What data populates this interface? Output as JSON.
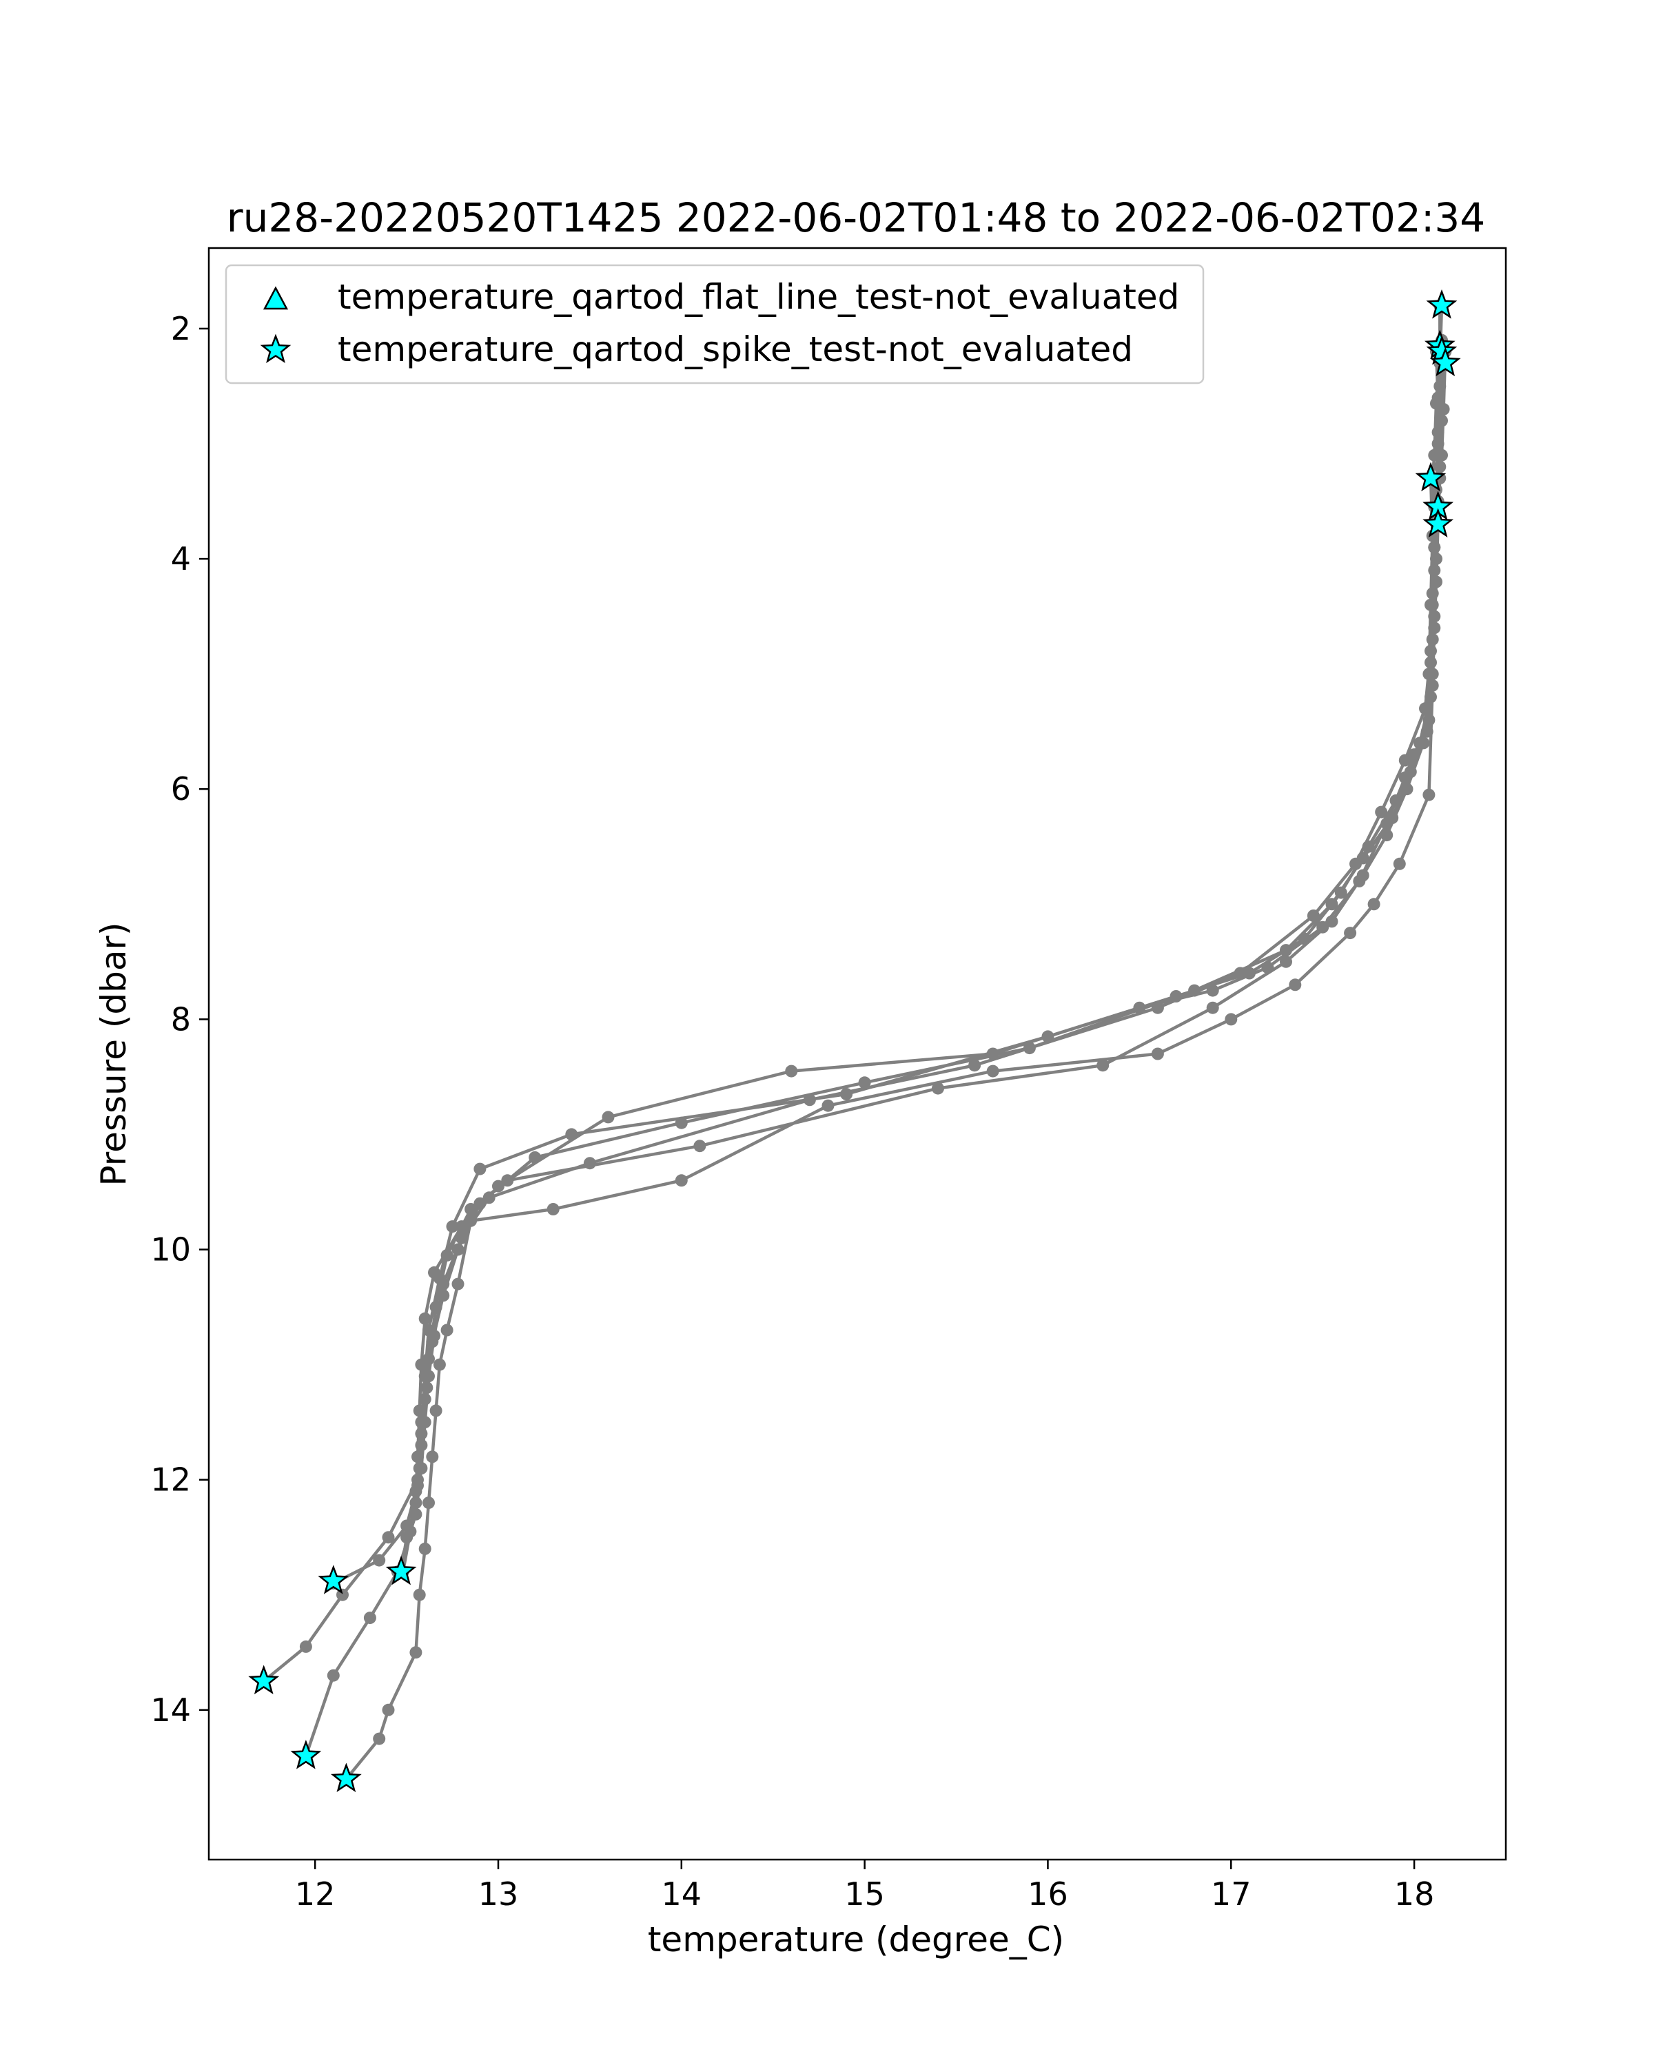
{
  "chart_data": {
    "type": "scatter",
    "title": "ru28-20220520T1425 2022-06-02T01:48 to 2022-06-02T02:34",
    "xlabel": "temperature (degree_C)",
    "ylabel": "Pressure (dbar)",
    "xlim": [
      11.42,
      18.5
    ],
    "ylim": [
      15.3,
      1.3
    ],
    "y_inverted": true,
    "x_ticks": [
      12,
      13,
      14,
      15,
      16,
      17,
      18
    ],
    "y_ticks": [
      2,
      4,
      6,
      8,
      10,
      12,
      14
    ],
    "grid": false,
    "legend_position": "upper-left",
    "legend": [
      {
        "label": "temperature_qartod_flat_line_test-not_evaluated",
        "marker": "triangle",
        "color": "#00ffff"
      },
      {
        "label": "temperature_qartod_spike_test-not_evaluated",
        "marker": "star",
        "color": "#00ffff"
      }
    ],
    "profile_color": "#808080",
    "profiles": [
      {
        "values": [
          [
            18.15,
            1.8
          ],
          [
            18.14,
            2.3
          ],
          [
            18.13,
            2.9
          ],
          [
            18.12,
            3.6
          ],
          [
            18.11,
            4.1
          ],
          [
            18.1,
            4.7
          ],
          [
            18.09,
            5.2
          ],
          [
            18.03,
            5.6
          ],
          [
            17.95,
            5.9
          ],
          [
            17.85,
            6.3
          ],
          [
            17.7,
            6.8
          ],
          [
            17.5,
            7.2
          ],
          [
            17.2,
            7.55
          ],
          [
            16.9,
            7.75
          ],
          [
            16.5,
            7.9
          ],
          [
            15.7,
            8.3
          ],
          [
            14.6,
            8.45
          ],
          [
            13.6,
            8.85
          ],
          [
            13.0,
            9.45
          ],
          [
            12.8,
            9.8
          ],
          [
            12.65,
            10.2
          ],
          [
            12.6,
            10.6
          ],
          [
            12.58,
            11.0
          ],
          [
            12.57,
            11.4
          ],
          [
            12.56,
            11.8
          ],
          [
            12.55,
            12.1
          ],
          [
            12.5,
            12.4
          ],
          [
            12.35,
            12.7
          ],
          [
            12.1,
            12.9
          ]
        ]
      },
      {
        "values": [
          [
            18.12,
            2.2
          ],
          [
            18.13,
            2.6
          ],
          [
            18.14,
            3.2
          ],
          [
            18.11,
            3.9
          ],
          [
            18.1,
            4.4
          ],
          [
            18.09,
            4.9
          ],
          [
            18.08,
            5.4
          ],
          [
            18.0,
            5.7
          ],
          [
            17.9,
            6.1
          ],
          [
            17.75,
            6.5
          ],
          [
            17.6,
            6.9
          ],
          [
            17.4,
            7.3
          ],
          [
            17.1,
            7.6
          ],
          [
            16.7,
            7.8
          ],
          [
            16.0,
            8.15
          ],
          [
            14.9,
            8.65
          ],
          [
            13.4,
            9.0
          ],
          [
            12.9,
            9.3
          ],
          [
            12.75,
            9.8
          ],
          [
            12.68,
            10.25
          ],
          [
            12.62,
            10.7
          ],
          [
            12.6,
            11.1
          ],
          [
            12.58,
            11.5
          ],
          [
            12.57,
            11.9
          ],
          [
            12.55,
            12.2
          ],
          [
            12.5,
            12.5
          ],
          [
            12.47,
            12.8
          ]
        ]
      },
      {
        "values": [
          [
            18.17,
            2.2
          ],
          [
            18.16,
            2.7
          ],
          [
            18.15,
            3.1
          ],
          [
            18.13,
            3.5
          ],
          [
            18.12,
            4.0
          ],
          [
            18.11,
            4.5
          ],
          [
            18.1,
            5.0
          ],
          [
            18.07,
            5.5
          ],
          [
            17.98,
            5.85
          ],
          [
            17.88,
            6.25
          ],
          [
            17.72,
            6.6
          ],
          [
            17.55,
            7.0
          ],
          [
            17.3,
            7.4
          ],
          [
            16.8,
            7.75
          ],
          [
            15.9,
            8.25
          ],
          [
            15.0,
            8.55
          ],
          [
            14.0,
            8.9
          ],
          [
            13.2,
            9.2
          ],
          [
            12.9,
            9.6
          ],
          [
            12.78,
            10.0
          ],
          [
            12.7,
            10.4
          ],
          [
            12.64,
            10.8
          ],
          [
            12.61,
            11.2
          ],
          [
            12.58,
            11.6
          ],
          [
            12.56,
            12.0
          ],
          [
            12.4,
            12.5
          ],
          [
            12.15,
            13.0
          ],
          [
            11.95,
            13.45
          ],
          [
            11.72,
            13.75
          ]
        ]
      },
      {
        "values": [
          [
            18.15,
            2.1
          ],
          [
            18.14,
            2.5
          ],
          [
            18.13,
            3.0
          ],
          [
            18.12,
            3.4
          ],
          [
            18.11,
            3.9
          ],
          [
            18.1,
            4.3
          ],
          [
            18.09,
            4.8
          ],
          [
            18.06,
            5.3
          ],
          [
            17.95,
            5.75
          ],
          [
            17.82,
            6.2
          ],
          [
            17.68,
            6.65
          ],
          [
            17.45,
            7.1
          ],
          [
            17.05,
            7.6
          ],
          [
            16.6,
            7.9
          ],
          [
            15.6,
            8.4
          ],
          [
            14.7,
            8.7
          ],
          [
            13.5,
            9.25
          ],
          [
            12.95,
            9.55
          ],
          [
            12.8,
            9.9
          ],
          [
            12.7,
            10.3
          ],
          [
            12.65,
            10.75
          ],
          [
            12.62,
            11.1
          ],
          [
            12.6,
            11.5
          ],
          [
            12.58,
            11.9
          ],
          [
            12.55,
            12.3
          ],
          [
            12.45,
            12.8
          ],
          [
            12.3,
            13.2
          ],
          [
            12.1,
            13.7
          ],
          [
            11.95,
            14.4
          ]
        ]
      },
      {
        "values": [
          [
            18.16,
            2.3
          ],
          [
            18.15,
            2.8
          ],
          [
            18.14,
            3.3
          ],
          [
            18.13,
            3.7
          ],
          [
            18.12,
            4.2
          ],
          [
            18.11,
            4.6
          ],
          [
            18.1,
            5.1
          ],
          [
            18.08,
            6.05
          ],
          [
            17.92,
            6.65
          ],
          [
            17.78,
            7.0
          ],
          [
            17.65,
            7.25
          ],
          [
            17.35,
            7.7
          ],
          [
            17.0,
            8.0
          ],
          [
            16.6,
            8.3
          ],
          [
            15.7,
            8.45
          ],
          [
            14.8,
            8.75
          ],
          [
            14.0,
            9.4
          ],
          [
            13.3,
            9.65
          ],
          [
            12.85,
            9.75
          ],
          [
            12.78,
            10.3
          ],
          [
            12.72,
            10.7
          ],
          [
            12.68,
            11.0
          ],
          [
            12.66,
            11.4
          ],
          [
            12.64,
            11.8
          ],
          [
            12.62,
            12.2
          ],
          [
            12.6,
            12.6
          ],
          [
            12.57,
            13.0
          ],
          [
            12.55,
            13.5
          ],
          [
            12.4,
            14.0
          ],
          [
            12.35,
            14.25
          ],
          [
            12.17,
            14.6
          ]
        ]
      },
      {
        "values": [
          [
            18.14,
            1.8
          ],
          [
            18.14,
            2.15
          ],
          [
            18.12,
            2.65
          ],
          [
            18.11,
            3.1
          ],
          [
            18.1,
            3.3
          ],
          [
            18.11,
            3.55
          ],
          [
            18.13,
            3.7
          ]
        ]
      },
      {
        "values": [
          [
            18.09,
            3.3
          ],
          [
            18.1,
            3.8
          ],
          [
            18.09,
            4.4
          ],
          [
            18.08,
            5.0
          ],
          [
            18.05,
            5.6
          ],
          [
            17.96,
            6.0
          ],
          [
            17.85,
            6.4
          ],
          [
            17.72,
            6.75
          ],
          [
            17.55,
            7.15
          ],
          [
            17.3,
            7.5
          ],
          [
            16.9,
            7.9
          ],
          [
            16.3,
            8.4
          ],
          [
            15.4,
            8.6
          ],
          [
            14.1,
            9.1
          ],
          [
            13.05,
            9.4
          ],
          [
            12.85,
            9.65
          ],
          [
            12.72,
            10.05
          ],
          [
            12.66,
            10.5
          ],
          [
            12.62,
            10.95
          ],
          [
            12.6,
            11.3
          ],
          [
            12.58,
            11.7
          ],
          [
            12.56,
            12.05
          ],
          [
            12.52,
            12.45
          ],
          [
            12.48,
            12.8
          ]
        ]
      }
    ],
    "flagged_spike_points": [
      [
        18.15,
        1.8
      ],
      [
        18.14,
        2.15
      ],
      [
        18.15,
        2.2
      ],
      [
        18.17,
        2.3
      ],
      [
        18.09,
        3.3
      ],
      [
        18.13,
        3.55
      ],
      [
        18.13,
        3.7
      ],
      [
        12.1,
        12.88
      ],
      [
        12.47,
        12.8
      ],
      [
        11.72,
        13.75
      ],
      [
        11.95,
        14.4
      ],
      [
        12.17,
        14.6
      ]
    ]
  }
}
